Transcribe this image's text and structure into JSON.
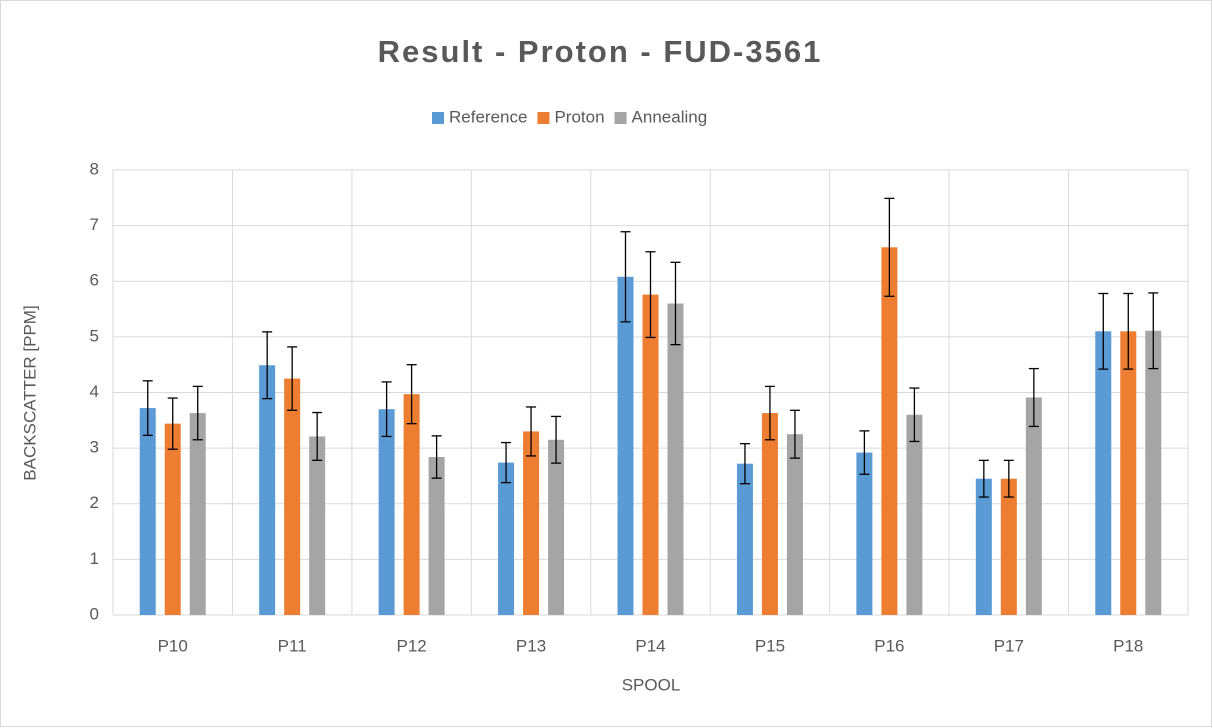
{
  "chart_data": {
    "type": "bar",
    "title": "Result - Proton - FUD-3561",
    "x_label": "SPOOL",
    "y_label": "BACKSCATTER [PPM]",
    "categories": [
      "P10",
      "P11",
      "P12",
      "P13",
      "P14",
      "P15",
      "P16",
      "P17",
      "P18"
    ],
    "series": [
      {
        "name": "Reference",
        "color": "#5b9bd5",
        "values": [
          3.72,
          4.49,
          3.7,
          2.74,
          6.08,
          2.72,
          2.92,
          2.45,
          5.1
        ],
        "errors": [
          0.49,
          0.6,
          0.49,
          0.36,
          0.81,
          0.36,
          0.39,
          0.33,
          0.68
        ]
      },
      {
        "name": "Proton",
        "color": "#ed7d31",
        "values": [
          3.44,
          4.25,
          3.97,
          3.3,
          5.76,
          3.63,
          6.61,
          2.45,
          5.1
        ],
        "errors": [
          0.46,
          0.57,
          0.53,
          0.44,
          0.77,
          0.48,
          0.88,
          0.33,
          0.68
        ]
      },
      {
        "name": "Annealing",
        "color": "#a5a5a5",
        "values": [
          3.63,
          3.21,
          2.84,
          3.15,
          5.6,
          3.25,
          3.6,
          3.91,
          5.11
        ],
        "errors": [
          0.48,
          0.43,
          0.38,
          0.42,
          0.74,
          0.43,
          0.48,
          0.52,
          0.68
        ]
      }
    ],
    "ylim": [
      0,
      8
    ],
    "yticks": [
      0,
      1,
      2,
      3,
      4,
      5,
      6,
      7,
      8
    ],
    "grid": true,
    "legend": "top"
  }
}
